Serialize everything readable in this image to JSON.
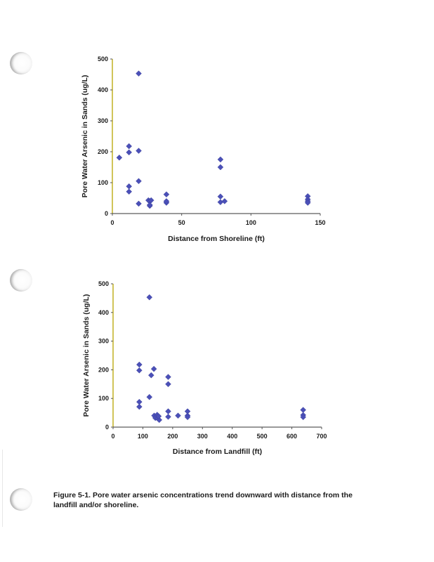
{
  "chart_data": [
    {
      "type": "scatter",
      "title": "",
      "xlabel": "Distance from Shoreline (ft)",
      "ylabel": "Pore Water Arsenic in Sands (ug/L)",
      "xlim": [
        0,
        150
      ],
      "ylim": [
        0,
        500
      ],
      "xticks": [
        0,
        50,
        100,
        150
      ],
      "yticks": [
        0,
        100,
        200,
        300,
        400,
        500
      ],
      "marker_color": "#4b50b8",
      "axis_color": "#b8a400",
      "series": [
        {
          "name": "pore water arsenic",
          "points": [
            {
              "x": 5,
              "y": 181
            },
            {
              "x": 12,
              "y": 218
            },
            {
              "x": 12,
              "y": 198
            },
            {
              "x": 12,
              "y": 88
            },
            {
              "x": 12,
              "y": 71
            },
            {
              "x": 19,
              "y": 453
            },
            {
              "x": 19,
              "y": 203
            },
            {
              "x": 19,
              "y": 105
            },
            {
              "x": 19,
              "y": 32
            },
            {
              "x": 26,
              "y": 43
            },
            {
              "x": 27,
              "y": 40
            },
            {
              "x": 27,
              "y": 25
            },
            {
              "x": 28,
              "y": 43
            },
            {
              "x": 27,
              "y": 28
            },
            {
              "x": 39,
              "y": 62
            },
            {
              "x": 39,
              "y": 35
            },
            {
              "x": 39,
              "y": 40
            },
            {
              "x": 78,
              "y": 175
            },
            {
              "x": 78,
              "y": 150
            },
            {
              "x": 78,
              "y": 55
            },
            {
              "x": 78,
              "y": 37
            },
            {
              "x": 81,
              "y": 40
            },
            {
              "x": 141,
              "y": 56
            },
            {
              "x": 141,
              "y": 46
            },
            {
              "x": 141,
              "y": 40
            },
            {
              "x": 141,
              "y": 35
            }
          ]
        }
      ]
    },
    {
      "type": "scatter",
      "title": "",
      "xlabel": "Distance from Landfill (ft)",
      "ylabel": "Pore Water Arsenic in Sands (ug/L)",
      "xlim": [
        0,
        700
      ],
      "ylim": [
        0,
        500
      ],
      "xticks": [
        0,
        100,
        200,
        300,
        400,
        500,
        600,
        700
      ],
      "yticks": [
        0,
        100,
        200,
        300,
        400,
        500
      ],
      "marker_color": "#4b50b8",
      "axis_color": "#b8a400",
      "series": [
        {
          "name": "pore water arsenic",
          "points": [
            {
              "x": 88,
              "y": 218
            },
            {
              "x": 88,
              "y": 198
            },
            {
              "x": 88,
              "y": 88
            },
            {
              "x": 88,
              "y": 71
            },
            {
              "x": 122,
              "y": 453
            },
            {
              "x": 122,
              "y": 105
            },
            {
              "x": 128,
              "y": 181
            },
            {
              "x": 137,
              "y": 203
            },
            {
              "x": 138,
              "y": 40
            },
            {
              "x": 142,
              "y": 32
            },
            {
              "x": 148,
              "y": 43
            },
            {
              "x": 150,
              "y": 30
            },
            {
              "x": 155,
              "y": 25
            },
            {
              "x": 153,
              "y": 38
            },
            {
              "x": 185,
              "y": 175
            },
            {
              "x": 185,
              "y": 150
            },
            {
              "x": 185,
              "y": 55
            },
            {
              "x": 185,
              "y": 36
            },
            {
              "x": 218,
              "y": 40
            },
            {
              "x": 250,
              "y": 55
            },
            {
              "x": 250,
              "y": 40
            },
            {
              "x": 250,
              "y": 35
            },
            {
              "x": 638,
              "y": 60
            },
            {
              "x": 638,
              "y": 42
            },
            {
              "x": 638,
              "y": 35
            }
          ]
        }
      ]
    }
  ],
  "caption": {
    "line1": "Figure 5-1.  Pore water arsenic concentrations trend downward with distance from the",
    "line2": "landfill and/or shoreline."
  }
}
